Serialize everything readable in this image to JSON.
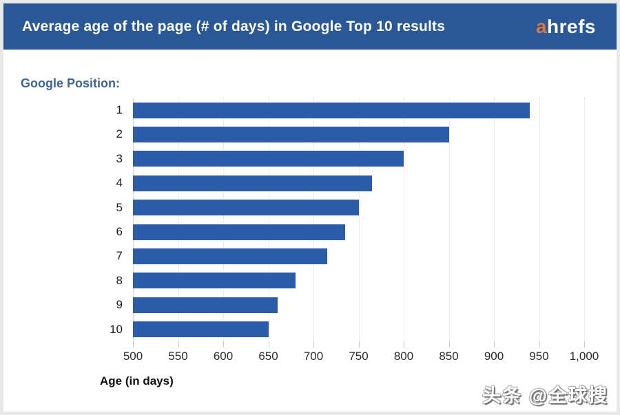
{
  "header": {
    "title": "Average age of the page (# of days) in Google Top 10 results",
    "logo": {
      "prefix": "a",
      "suffix": "hrefs"
    }
  },
  "colors": {
    "header_bg": "#2a5796",
    "bar_color": "#2b5ca9",
    "logo_prefix_color": "#dd7740",
    "legend_color": "#3f6595"
  },
  "chart_data": {
    "type": "bar",
    "orientation": "horizontal",
    "title": "Average age of the page (# of days) in Google Top 10 results",
    "legend_label": "Google Position:",
    "categories": [
      "1",
      "2",
      "3",
      "4",
      "5",
      "6",
      "7",
      "8",
      "9",
      "10"
    ],
    "values": [
      940,
      850,
      800,
      765,
      750,
      735,
      715,
      680,
      660,
      650
    ],
    "xlabel": "Age (in days)",
    "ylabel": "Google Position",
    "xlim": [
      500,
      1000
    ],
    "grid": true,
    "x_ticks": [
      {
        "value": 500,
        "label": "500"
      },
      {
        "value": 550,
        "label": "550"
      },
      {
        "value": 600,
        "label": "600"
      },
      {
        "value": 650,
        "label": "650"
      },
      {
        "value": 700,
        "label": "700"
      },
      {
        "value": 750,
        "label": "750"
      },
      {
        "value": 800,
        "label": "800"
      },
      {
        "value": 850,
        "label": "850"
      },
      {
        "value": 900,
        "label": "900"
      },
      {
        "value": 950,
        "label": "950"
      },
      {
        "value": 1000,
        "label": "1,000"
      }
    ]
  },
  "watermark": {
    "text": "头条 @全球搜"
  }
}
